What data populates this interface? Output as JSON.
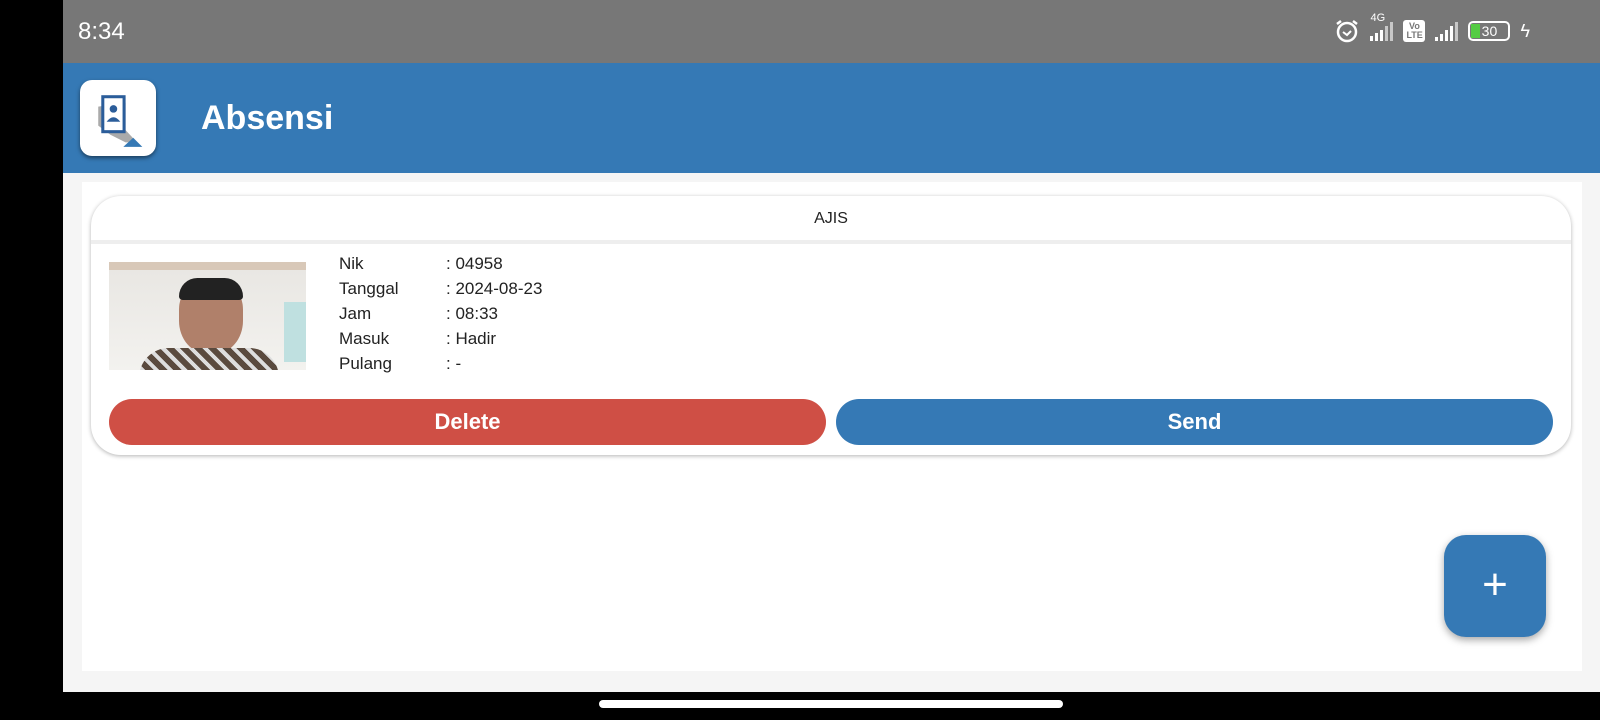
{
  "status_bar": {
    "time": "8:34",
    "network": "4G",
    "volte": "Vo LTE",
    "battery": "30",
    "icons": [
      "alarm-icon",
      "signal-icon",
      "volte-icon",
      "signal-icon",
      "battery-icon",
      "charging-icon"
    ]
  },
  "header": {
    "title": "Absensi",
    "logo": "attendance-card-icon"
  },
  "colors": {
    "primary": "#3579b5",
    "danger": "#cf4f45"
  },
  "card": {
    "name": "AJIS",
    "fields": [
      {
        "label": "Nik",
        "value": ": 04958"
      },
      {
        "label": "Tanggal",
        "value": ": 2024-08-23"
      },
      {
        "label": "Jam",
        "value": ": 08:33"
      },
      {
        "label": "Masuk",
        "value": ": Hadir"
      },
      {
        "label": "Pulang",
        "value": ": -"
      }
    ],
    "delete_label": "Delete",
    "send_label": "Send"
  },
  "fab": {
    "label": "+"
  }
}
